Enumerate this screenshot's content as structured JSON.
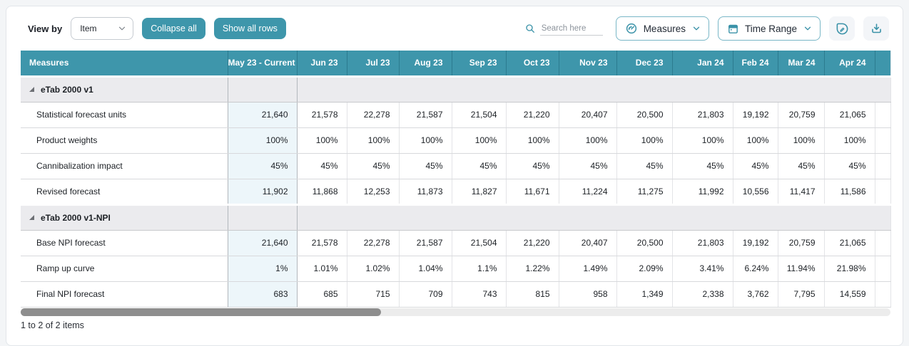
{
  "toolbar": {
    "view_by_label": "View by",
    "view_by_value": "Item",
    "collapse_all_label": "Collapse all",
    "show_all_rows_label": "Show all rows",
    "search_placeholder": "Search here",
    "measures_dropdown_label": "Measures",
    "time_range_dropdown_label": "Time Range"
  },
  "table": {
    "measures_header": "Measures",
    "columns": [
      "May 23 - Current",
      "Jun 23",
      "Jul 23",
      "Aug 23",
      "Sep 23",
      "Oct 23",
      "Nov 23",
      "Dec 23",
      "Jan 24",
      "Feb 24",
      "Mar 24",
      "Apr 24"
    ],
    "groups": [
      {
        "label": "eTab 2000 v1",
        "rows": [
          {
            "label": "Statistical forecast units",
            "values": [
              "21,640",
              "21,578",
              "22,278",
              "21,587",
              "21,504",
              "21,220",
              "20,407",
              "20,500",
              "21,803",
              "19,192",
              "20,759",
              "21,065"
            ]
          },
          {
            "label": "Product weights",
            "values": [
              "100%",
              "100%",
              "100%",
              "100%",
              "100%",
              "100%",
              "100%",
              "100%",
              "100%",
              "100%",
              "100%",
              "100%"
            ]
          },
          {
            "label": "Cannibalization impact",
            "values": [
              "45%",
              "45%",
              "45%",
              "45%",
              "45%",
              "45%",
              "45%",
              "45%",
              "45%",
              "45%",
              "45%",
              "45%"
            ]
          },
          {
            "label": "Revised forecast",
            "values": [
              "11,902",
              "11,868",
              "12,253",
              "11,873",
              "11,827",
              "11,671",
              "11,224",
              "11,275",
              "11,992",
              "10,556",
              "11,417",
              "11,586"
            ]
          }
        ]
      },
      {
        "label": "eTab 2000 v1-NPI",
        "rows": [
          {
            "label": "Base NPI forecast",
            "values": [
              "21,640",
              "21,578",
              "22,278",
              "21,587",
              "21,504",
              "21,220",
              "20,407",
              "20,500",
              "21,803",
              "19,192",
              "20,759",
              "21,065"
            ]
          },
          {
            "label": "Ramp up curve",
            "values": [
              "1%",
              "1.01%",
              "1.02%",
              "1.04%",
              "1.1%",
              "1.22%",
              "1.49%",
              "2.09%",
              "3.41%",
              "6.24%",
              "11.94%",
              "21.98%"
            ]
          },
          {
            "label": "Final NPI forecast",
            "values": [
              "683",
              "685",
              "715",
              "709",
              "743",
              "815",
              "958",
              "1,349",
              "2,338",
              "3,762",
              "7,795",
              "14,559"
            ]
          }
        ]
      }
    ]
  },
  "status_bar": {
    "items_text": "1 to 2 of 2 items"
  },
  "colors": {
    "accent_teal": "#3e96ab",
    "header_separator": "#2c7b8f",
    "current_column_bg": "#edf6fa",
    "group_row_bg": "#ebebee"
  }
}
